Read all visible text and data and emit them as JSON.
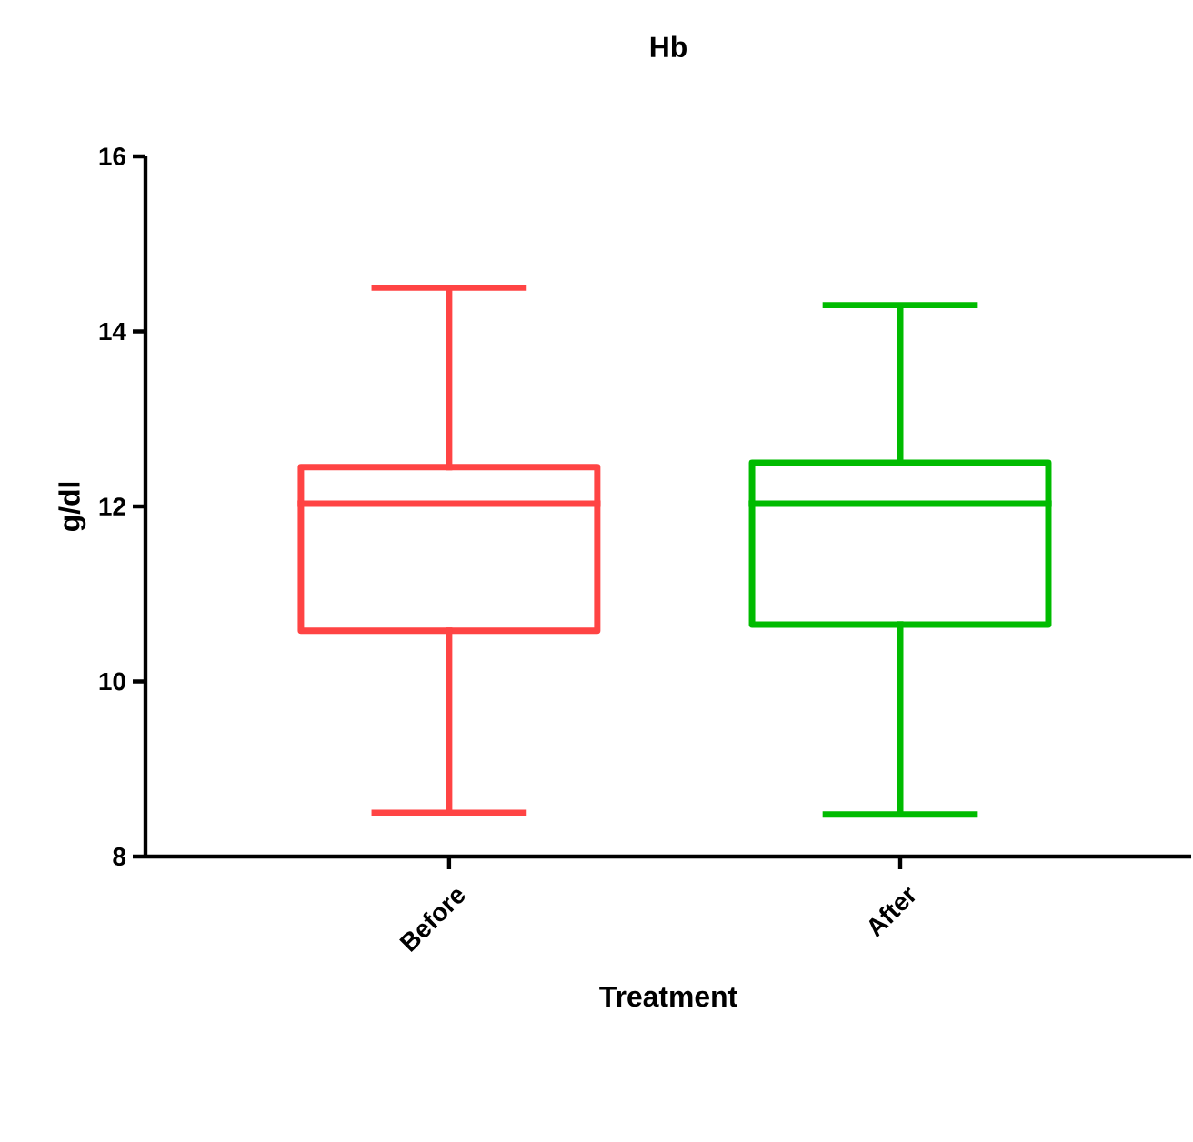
{
  "chart_data": {
    "type": "box",
    "title": "Hb",
    "xlabel": "Treatment",
    "ylabel": "g/dl",
    "categories": [
      "Before",
      "After"
    ],
    "colors": [
      "#ff4444",
      "#00bb00"
    ],
    "boxes": [
      {
        "low": 8.5,
        "q1": 10.58,
        "median": 12.03,
        "q3": 12.45,
        "high": 14.5
      },
      {
        "low": 8.48,
        "q1": 10.65,
        "median": 12.03,
        "q3": 12.5,
        "high": 14.3
      }
    ],
    "ylim": [
      8,
      16
    ],
    "yticks": [
      8,
      10,
      12,
      14,
      16
    ],
    "grid": false
  }
}
